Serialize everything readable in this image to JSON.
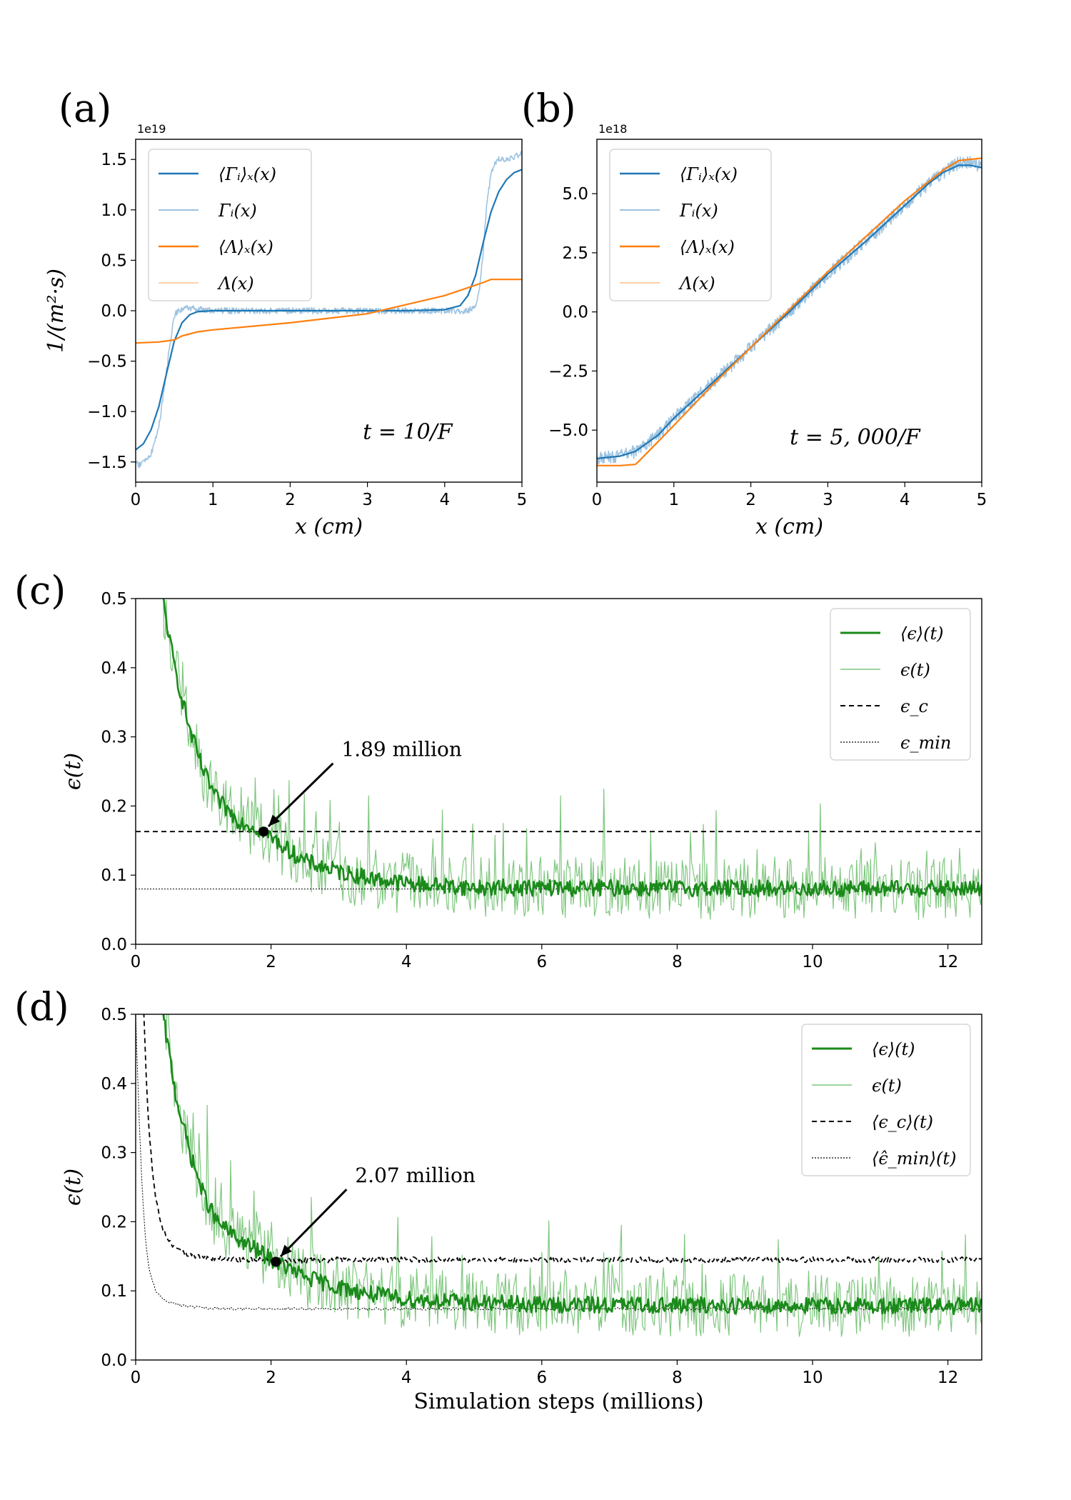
{
  "figure": {
    "panel_labels": [
      "(a)",
      "(b)",
      "(c)",
      "(d)"
    ]
  },
  "colors": {
    "blue": "#1f77b4",
    "blue_light": "#9ec3e0",
    "orange": "#ff7f0e",
    "orange_light": "#ffc99a",
    "green": "#1a8a1a",
    "green_light": "#7fc77f",
    "black": "#000000"
  },
  "chart_data": [
    {
      "id": "a",
      "type": "line",
      "panel_label": "(a)",
      "xlabel": "x (cm)",
      "ylabel": "1/(m²·s)",
      "sci_multiplier": "1e19",
      "xlim": [
        0,
        5
      ],
      "ylim": [
        -1.7,
        1.7
      ],
      "xticks": [
        0,
        1,
        2,
        3,
        4,
        5
      ],
      "yticks": [
        -1.5,
        -1.0,
        -0.5,
        0.0,
        0.5,
        1.0,
        1.5
      ],
      "ytick_labels": [
        "−1.5",
        "−1.0",
        "−0.5",
        "0.0",
        "0.5",
        "1.0",
        "1.5"
      ],
      "annotation": "t = 10/F",
      "legend": [
        "⟨Γᵢ⟩ₓ(x)",
        "Γᵢ(x)",
        "⟨Λ⟩ₓ(x)",
        "Λ(x)"
      ],
      "legend_position": "top-left",
      "series": [
        {
          "name": "⟨Γᵢ⟩ₓ(x)",
          "style": "blue",
          "x": [
            0,
            0.1,
            0.2,
            0.3,
            0.4,
            0.5,
            0.6,
            0.7,
            0.8,
            1.0,
            1.5,
            2.0,
            2.5,
            3.0,
            3.5,
            4.0,
            4.2,
            4.3,
            4.4,
            4.5,
            4.6,
            4.7,
            4.8,
            4.9,
            5.0
          ],
          "y": [
            -1.38,
            -1.32,
            -1.18,
            -0.95,
            -0.62,
            -0.3,
            -0.12,
            -0.04,
            -0.01,
            0.0,
            0.0,
            0.0,
            0.0,
            0.0,
            0.0,
            0.01,
            0.05,
            0.15,
            0.35,
            0.68,
            0.98,
            1.18,
            1.3,
            1.37,
            1.4
          ]
        },
        {
          "name": "Γᵢ(x)",
          "style": "blue_light",
          "x": [
            0,
            0.05,
            0.1,
            0.2,
            0.3,
            0.4,
            0.45,
            0.5,
            0.55,
            0.6,
            0.65,
            0.7,
            1.0,
            2.0,
            3.0,
            4.0,
            4.3,
            4.4,
            4.45,
            4.5,
            4.55,
            4.6,
            4.65,
            4.7,
            4.8,
            4.9,
            5.0
          ],
          "y": [
            -1.5,
            -1.53,
            -1.5,
            -1.42,
            -1.15,
            -0.6,
            -0.3,
            -0.05,
            0.0,
            0.02,
            0.03,
            0.02,
            0.0,
            0.0,
            0.0,
            0.0,
            0.0,
            0.05,
            0.2,
            0.6,
            1.1,
            1.35,
            1.45,
            1.5,
            1.5,
            1.52,
            1.57
          ],
          "noise": 0.03
        },
        {
          "name": "⟨Λ⟩ₓ(x)",
          "style": "orange",
          "x": [
            0,
            0.3,
            0.5,
            0.6,
            0.7,
            0.8,
            1.0,
            2.0,
            3.0,
            4.0,
            4.5,
            4.6,
            5.0
          ],
          "y": [
            -0.32,
            -0.31,
            -0.29,
            -0.25,
            -0.23,
            -0.21,
            -0.19,
            -0.12,
            -0.03,
            0.15,
            0.28,
            0.31,
            0.31
          ]
        },
        {
          "name": "Λ(x)",
          "style": "orange_light",
          "x": [
            0,
            0.3,
            0.5,
            0.6,
            0.7,
            0.8,
            1.0,
            2.0,
            3.0,
            4.0,
            4.5,
            4.6,
            5.0
          ],
          "y": [
            -0.32,
            -0.31,
            -0.29,
            -0.25,
            -0.23,
            -0.21,
            -0.19,
            -0.12,
            -0.03,
            0.15,
            0.28,
            0.31,
            0.31
          ]
        }
      ]
    },
    {
      "id": "b",
      "type": "line",
      "panel_label": "(b)",
      "xlabel": "x (cm)",
      "ylabel": "",
      "sci_multiplier": "1e18",
      "xlim": [
        0,
        5
      ],
      "ylim": [
        -7.2,
        7.3
      ],
      "xticks": [
        0,
        1,
        2,
        3,
        4,
        5
      ],
      "yticks": [
        -5.0,
        -2.5,
        0.0,
        2.5,
        5.0
      ],
      "ytick_labels": [
        "−5.0",
        "−2.5",
        "0.0",
        "2.5",
        "5.0"
      ],
      "annotation": "t = 5, 000/F",
      "legend": [
        "⟨Γᵢ⟩ₓ(x)",
        "Γᵢ(x)",
        "⟨Λ⟩ₓ(x)",
        "Λ(x)"
      ],
      "legend_position": "top-left",
      "series": [
        {
          "name": "⟨Γᵢ⟩ₓ(x)",
          "style": "blue",
          "x": [
            0,
            0.3,
            0.5,
            0.8,
            1.0,
            1.5,
            2.0,
            2.5,
            3.0,
            3.5,
            4.0,
            4.3,
            4.5,
            4.7,
            4.85,
            5.0
          ],
          "y": [
            -6.2,
            -6.1,
            -5.9,
            -5.2,
            -4.5,
            -3.0,
            -1.5,
            0.0,
            1.6,
            3.0,
            4.5,
            5.4,
            5.9,
            6.2,
            6.2,
            6.1
          ]
        },
        {
          "name": "Γᵢ(x)",
          "style": "blue_light",
          "x": [
            0,
            0.3,
            0.5,
            0.8,
            1.0,
            1.5,
            2.0,
            2.5,
            3.0,
            3.5,
            4.0,
            4.3,
            4.5,
            4.7,
            4.85,
            5.0
          ],
          "y": [
            -6.2,
            -6.1,
            -5.9,
            -5.2,
            -4.5,
            -3.0,
            -1.5,
            0.0,
            1.6,
            3.0,
            4.5,
            5.4,
            5.9,
            6.3,
            6.3,
            6.1
          ],
          "noise": 0.28
        },
        {
          "name": "⟨Λ⟩ₓ(x)",
          "style": "orange",
          "x": [
            0,
            0.3,
            0.5,
            0.55,
            0.7,
            1.0,
            1.5,
            2.0,
            2.5,
            3.0,
            3.5,
            4.0,
            4.5,
            4.7,
            5.0
          ],
          "y": [
            -6.5,
            -6.5,
            -6.45,
            -6.3,
            -5.8,
            -4.8,
            -3.1,
            -1.5,
            0.1,
            1.7,
            3.2,
            4.7,
            6.0,
            6.4,
            6.5
          ]
        },
        {
          "name": "Λ(x)",
          "style": "orange_light",
          "x": [
            0,
            0.3,
            0.5,
            0.55,
            0.7,
            1.0,
            1.5,
            2.0,
            2.5,
            3.0,
            3.5,
            4.0,
            4.5,
            4.7,
            5.0
          ],
          "y": [
            -6.5,
            -6.5,
            -6.45,
            -6.3,
            -5.8,
            -4.8,
            -3.1,
            -1.5,
            0.1,
            1.7,
            3.2,
            4.7,
            6.0,
            6.4,
            6.5
          ]
        }
      ]
    },
    {
      "id": "c",
      "type": "line",
      "panel_label": "(c)",
      "xlabel": "",
      "ylabel": "ϵ(t)",
      "xlim": [
        0,
        12.5
      ],
      "ylim": [
        0,
        0.5
      ],
      "xticks": [
        0,
        2,
        4,
        6,
        8,
        10,
        12
      ],
      "yticks": [
        0.0,
        0.1,
        0.2,
        0.3,
        0.4,
        0.5
      ],
      "ytick_labels": [
        "0.0",
        "0.1",
        "0.2",
        "0.3",
        "0.4",
        "0.5"
      ],
      "legend": [
        "⟨ϵ⟩(t)",
        "ϵ(t)",
        "ϵ_c",
        "ϵ_min"
      ],
      "legend_position": "top-right",
      "annotation": {
        "text": "1.89 million",
        "x": 1.89,
        "y": 0.163,
        "text_x": 3.0,
        "text_y": 0.27
      },
      "epsilon_c": 0.163,
      "epsilon_min": 0.08,
      "series": [
        {
          "name": "⟨ϵ⟩(t)",
          "style": "green",
          "x": [
            0.4,
            0.5,
            0.6,
            0.8,
            1.0,
            1.2,
            1.5,
            1.89,
            2.2,
            2.5,
            3.0,
            3.5,
            4.0,
            5.0,
            12.5
          ],
          "y": [
            0.5,
            0.44,
            0.39,
            0.31,
            0.25,
            0.21,
            0.18,
            0.163,
            0.14,
            0.12,
            0.105,
            0.095,
            0.088,
            0.082,
            0.08
          ],
          "noise": 0.012
        },
        {
          "name": "ϵ(t)",
          "style": "green_light",
          "x": [
            0.4,
            0.5,
            0.6,
            0.8,
            1.0,
            1.2,
            1.5,
            1.89,
            2.2,
            2.5,
            3.0,
            3.5,
            4.0,
            5.0,
            12.5
          ],
          "y": [
            0.5,
            0.44,
            0.39,
            0.31,
            0.25,
            0.21,
            0.18,
            0.163,
            0.14,
            0.12,
            0.105,
            0.095,
            0.088,
            0.082,
            0.08
          ],
          "noise": 0.045
        },
        {
          "name": "ϵ_c",
          "style": "dashed",
          "x": [
            0,
            12.5
          ],
          "y": [
            0.163,
            0.163
          ]
        },
        {
          "name": "ϵ_min",
          "style": "dotted",
          "x": [
            0,
            12.5
          ],
          "y": [
            0.08,
            0.08
          ]
        }
      ]
    },
    {
      "id": "d",
      "type": "line",
      "panel_label": "(d)",
      "xlabel": "Simulation steps (millions)",
      "ylabel": "ϵ(t)",
      "xlim": [
        0,
        12.5
      ],
      "ylim": [
        0,
        0.5
      ],
      "xticks": [
        0,
        2,
        4,
        6,
        8,
        10,
        12
      ],
      "yticks": [
        0.0,
        0.1,
        0.2,
        0.3,
        0.4,
        0.5
      ],
      "ytick_labels": [
        "0.0",
        "0.1",
        "0.2",
        "0.3",
        "0.4",
        "0.5"
      ],
      "legend": [
        "⟨ϵ⟩(t)",
        "ϵ(t)",
        "⟨ϵ_c⟩(t)",
        "⟨ϵ̂_min⟩(t)"
      ],
      "legend_position": "top-right",
      "annotation": {
        "text": "2.07 million",
        "x": 2.07,
        "y": 0.142,
        "text_x": 3.2,
        "text_y": 0.255
      },
      "series": [
        {
          "name": "⟨ϵ⟩(t)",
          "style": "green",
          "x": [
            0.4,
            0.5,
            0.6,
            0.8,
            1.0,
            1.2,
            1.5,
            2.07,
            2.5,
            3.0,
            3.5,
            4.0,
            5.0,
            6.0,
            12.5
          ],
          "y": [
            0.5,
            0.44,
            0.38,
            0.3,
            0.24,
            0.2,
            0.175,
            0.142,
            0.12,
            0.105,
            0.095,
            0.088,
            0.083,
            0.08,
            0.078
          ],
          "noise": 0.012
        },
        {
          "name": "ϵ(t)",
          "style": "green_light",
          "x": [
            0.4,
            0.5,
            0.6,
            0.8,
            1.0,
            1.2,
            1.5,
            2.07,
            2.5,
            3.0,
            3.5,
            4.0,
            5.0,
            6.0,
            12.5
          ],
          "y": [
            0.5,
            0.44,
            0.38,
            0.3,
            0.24,
            0.2,
            0.175,
            0.142,
            0.12,
            0.105,
            0.095,
            0.088,
            0.083,
            0.08,
            0.078
          ],
          "noise": 0.045
        },
        {
          "name": "⟨ϵ_c⟩(t)",
          "style": "dashed",
          "x": [
            0.12,
            0.15,
            0.2,
            0.25,
            0.3,
            0.4,
            0.5,
            0.7,
            1.0,
            1.5,
            2.0,
            3.0,
            12.5
          ],
          "y": [
            0.5,
            0.42,
            0.33,
            0.27,
            0.23,
            0.19,
            0.17,
            0.155,
            0.148,
            0.145,
            0.144,
            0.145,
            0.145
          ],
          "noise": 0.004
        },
        {
          "name": "⟨ϵ̂_min⟩(t)",
          "style": "dotted",
          "x": [
            0.0,
            0.05,
            0.1,
            0.15,
            0.2,
            0.3,
            0.4,
            0.6,
            0.8,
            1.0,
            1.5,
            2.0,
            12.5
          ],
          "y": [
            0.5,
            0.35,
            0.24,
            0.17,
            0.13,
            0.1,
            0.088,
            0.08,
            0.077,
            0.075,
            0.074,
            0.074,
            0.074
          ],
          "noise": 0.002
        }
      ]
    }
  ]
}
